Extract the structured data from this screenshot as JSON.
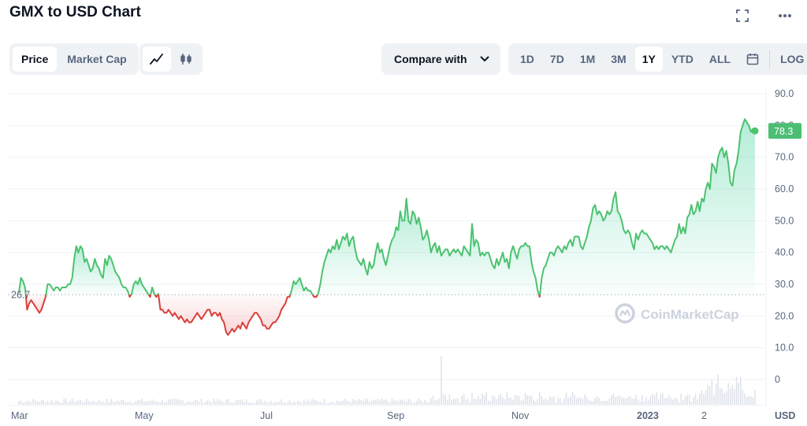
{
  "header": {
    "title": "GMX to USD Chart"
  },
  "toolbar": {
    "tabs": [
      "Price",
      "Market Cap"
    ],
    "compare_label": "Compare with",
    "ranges": [
      "1D",
      "7D",
      "1M",
      "3M",
      "1Y",
      "YTD",
      "ALL"
    ],
    "active_range": "1Y",
    "log_label": "LOG"
  },
  "watermark": "CoinMarketCap",
  "colors": {
    "up": "#16c784",
    "line_up": "#4cc26f",
    "down": "#d9403a",
    "active_price": "#4cbe74"
  },
  "chart_data": {
    "type": "line",
    "title": "GMX to USD Chart",
    "currency": "USD",
    "x_ticks": [
      "Mar",
      "May",
      "Jul",
      "Sep",
      "Nov",
      "2023",
      "2"
    ],
    "y_ticks": [
      "90.0",
      "80.0",
      "70.0",
      "60.0",
      "50.0",
      "40.0",
      "30.0",
      "20.0",
      "10.0",
      "0"
    ],
    "ylim": [
      0,
      90
    ],
    "baseline": 26.7,
    "baseline_label": "26.7",
    "current_price": 78.3,
    "current_price_label": "78.3",
    "series": [
      {
        "values": [
          27.3,
          32,
          31,
          29,
          22,
          24,
          25,
          24,
          23,
          22,
          21,
          22,
          24,
          26,
          30,
          30,
          29,
          28,
          29,
          29,
          28,
          29,
          29,
          29,
          30,
          30,
          32,
          38,
          42,
          40,
          42,
          41,
          37,
          38,
          36,
          34,
          35,
          38,
          36,
          35,
          33,
          32,
          38,
          36,
          39,
          38,
          36,
          34,
          33,
          32,
          30,
          29,
          29,
          28,
          26,
          27,
          30,
          31,
          30,
          32,
          30,
          29,
          28,
          27,
          26,
          29,
          27,
          26,
          27,
          22,
          22,
          21,
          21,
          22,
          21,
          20,
          21,
          20,
          19,
          20,
          19,
          18,
          19,
          18,
          18,
          19,
          20,
          21,
          20,
          19,
          20,
          21,
          22,
          22,
          20,
          21,
          21,
          20,
          21,
          19,
          18,
          15,
          14,
          15,
          16,
          15,
          16,
          17,
          16,
          18,
          17,
          16,
          18,
          19,
          20,
          21,
          21,
          20,
          19,
          17,
          17,
          16,
          16,
          17,
          18,
          18,
          19,
          20,
          22,
          23,
          24,
          26,
          26,
          28,
          31,
          30,
          31,
          32,
          30,
          28,
          29,
          28,
          28,
          27,
          26,
          26,
          27,
          30,
          34,
          37,
          39,
          41,
          40,
          42,
          41,
          44,
          41,
          43,
          45,
          44,
          46,
          42,
          44,
          45,
          41,
          38,
          37,
          36,
          38,
          35,
          33,
          37,
          35,
          36,
          40,
          43,
          40,
          41,
          38,
          36,
          39,
          42,
          44,
          45,
          48,
          47,
          53,
          50,
          50,
          57,
          50,
          49,
          53,
          52,
          49,
          51,
          48,
          44,
          45,
          47,
          44,
          40,
          42,
          43,
          40,
          42,
          39,
          40,
          41,
          41,
          39,
          40,
          41,
          40,
          41,
          40,
          39,
          42,
          41,
          40,
          39,
          49,
          42,
          44,
          43,
          39,
          40,
          39,
          40,
          40,
          38,
          36,
          35,
          38,
          36,
          38,
          40,
          37,
          38,
          35,
          40,
          42,
          40,
          38,
          41,
          42,
          42,
          43,
          42,
          42,
          37,
          34,
          32,
          28,
          26,
          32,
          35,
          36,
          38,
          40,
          40,
          39,
          41,
          42,
          41,
          40,
          42,
          41,
          43,
          44,
          42,
          45,
          45,
          45,
          42,
          41,
          43,
          45,
          48,
          50,
          54,
          55,
          52,
          53,
          52,
          50,
          51,
          53,
          52,
          53,
          57,
          59,
          53,
          52,
          50,
          47,
          46,
          47,
          46,
          43,
          41,
          46,
          44,
          46,
          47,
          46,
          46,
          45,
          44,
          43,
          41,
          42,
          41,
          42,
          42,
          41,
          42,
          41,
          40,
          42,
          44,
          45,
          49,
          46,
          48,
          46,
          51,
          52,
          55,
          52,
          53,
          56,
          53,
          57,
          56,
          60,
          62,
          60,
          68,
          67,
          65,
          70,
          72,
          73,
          70,
          72,
          68,
          62,
          61,
          66,
          68,
          72,
          78,
          80,
          82,
          81,
          80,
          78,
          79,
          78.3
        ]
      }
    ]
  }
}
